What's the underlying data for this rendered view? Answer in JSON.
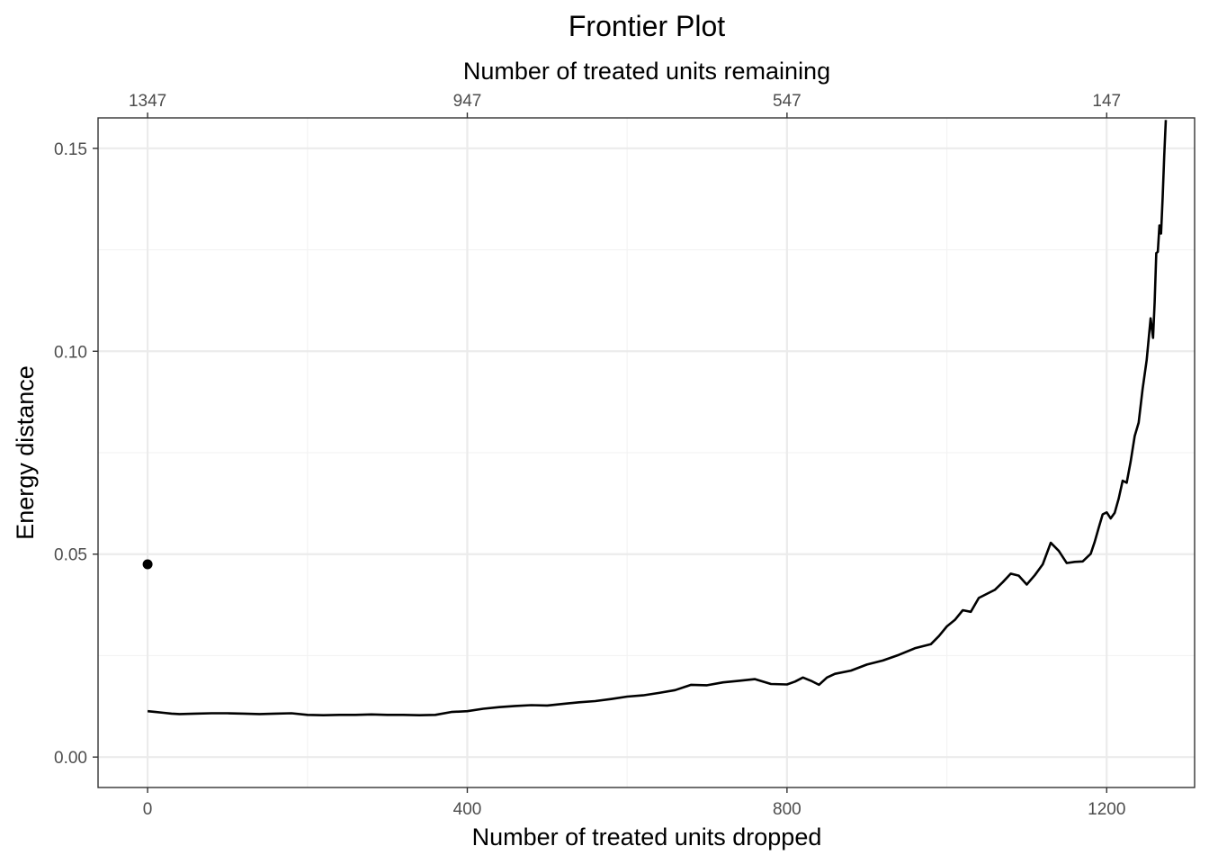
{
  "chart_data": {
    "type": "line",
    "title": "Frontier Plot",
    "xlabel": "Number of treated units dropped",
    "ylabel": "Energy distance",
    "x2label": "Number of treated units remaining",
    "xlim": [
      -62,
      1310
    ],
    "ylim": [
      -0.0075,
      0.1575
    ],
    "x_ticks": [
      0,
      400,
      800,
      1200
    ],
    "x_tick_labels": [
      "0",
      "400",
      "800",
      "1200"
    ],
    "x2_tick_labels": [
      "1347",
      "947",
      "547",
      "147"
    ],
    "y_ticks": [
      0.0,
      0.05,
      0.1,
      0.15
    ],
    "y_tick_labels": [
      "0.00",
      "0.05",
      "0.10",
      "0.15"
    ],
    "x_minor_ticks": [
      200,
      600,
      1000
    ],
    "y_minor_ticks": [
      0.025,
      0.075,
      0.125
    ],
    "grid": true,
    "series": [
      {
        "x": [
          0,
          10,
          20,
          30,
          40,
          60,
          80,
          100,
          120,
          140,
          160,
          180,
          200,
          220,
          240,
          260,
          280,
          300,
          320,
          340,
          360,
          380,
          400,
          420,
          440,
          460,
          480,
          500,
          520,
          540,
          560,
          580,
          600,
          620,
          640,
          660,
          680,
          700,
          720,
          740,
          760,
          780,
          800,
          810,
          820,
          830,
          840,
          850,
          860,
          880,
          900,
          920,
          940,
          960,
          980,
          990,
          1000,
          1010,
          1020,
          1030,
          1040,
          1050,
          1060,
          1070,
          1080,
          1090,
          1100,
          1110,
          1120,
          1130,
          1140,
          1150,
          1160,
          1170,
          1180,
          1185,
          1190,
          1195,
          1200,
          1205,
          1210,
          1215,
          1220,
          1225,
          1230,
          1235,
          1240,
          1245,
          1250,
          1255,
          1258,
          1260,
          1262,
          1264,
          1266,
          1268,
          1270,
          1272,
          1274
        ],
        "y": [
          0.0113,
          0.0111,
          0.0109,
          0.0107,
          0.0106,
          0.0107,
          0.0108,
          0.0108,
          0.0107,
          0.0106,
          0.0107,
          0.0108,
          0.0104,
          0.0103,
          0.0104,
          0.0104,
          0.0105,
          0.0104,
          0.0104,
          0.0103,
          0.0104,
          0.0111,
          0.0113,
          0.0119,
          0.0123,
          0.0126,
          0.0128,
          0.0127,
          0.0131,
          0.0135,
          0.0138,
          0.0143,
          0.0149,
          0.0152,
          0.0158,
          0.0165,
          0.0178,
          0.0177,
          0.0184,
          0.0188,
          0.0192,
          0.018,
          0.0179,
          0.0186,
          0.0196,
          0.0188,
          0.0178,
          0.0196,
          0.0205,
          0.0213,
          0.0228,
          0.0238,
          0.0252,
          0.0268,
          0.0278,
          0.0298,
          0.0322,
          0.0338,
          0.0362,
          0.0358,
          0.0392,
          0.0402,
          0.0412,
          0.0431,
          0.0452,
          0.0447,
          0.0425,
          0.0448,
          0.0475,
          0.0528,
          0.0508,
          0.0478,
          0.0481,
          0.0482,
          0.0501,
          0.053,
          0.0565,
          0.0598,
          0.0603,
          0.0588,
          0.0602,
          0.0637,
          0.0681,
          0.0676,
          0.0728,
          0.0791,
          0.0824,
          0.0907,
          0.0978,
          0.1081,
          0.1033,
          0.1122,
          0.1242,
          0.1245,
          0.131,
          0.129,
          0.138,
          0.148,
          0.157
        ]
      }
    ],
    "points": [
      {
        "x": 0,
        "y": 0.0475
      }
    ]
  }
}
